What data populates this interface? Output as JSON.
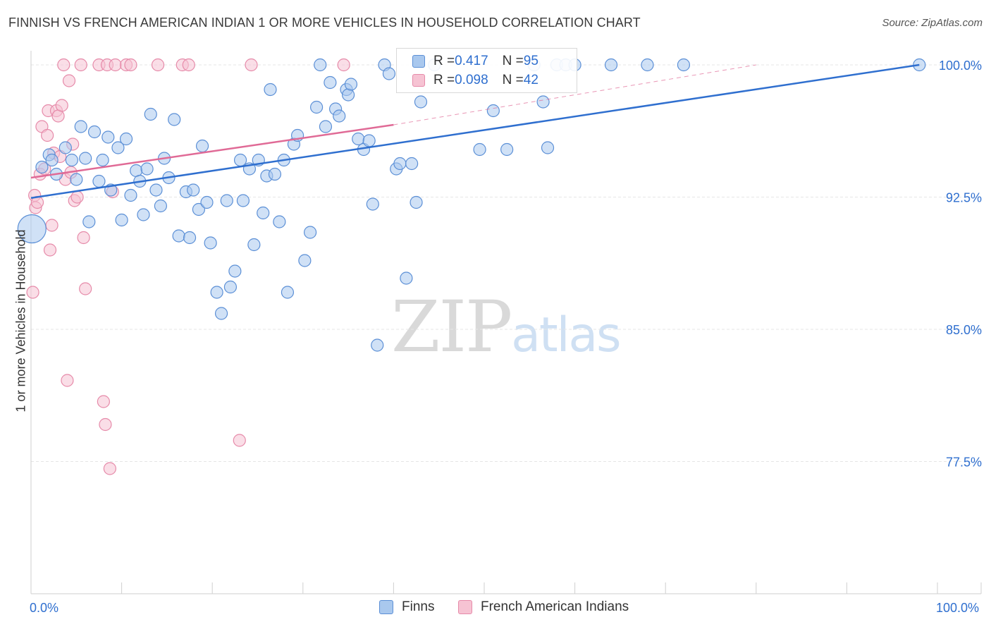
{
  "header": {
    "title": "FINNISH VS FRENCH AMERICAN INDIAN 1 OR MORE VEHICLES IN HOUSEHOLD CORRELATION CHART",
    "source": "Source: ZipAtlas.com"
  },
  "watermark": {
    "zip": "ZIP",
    "atlas": "atlas"
  },
  "colors": {
    "finns_fill": "#a9c8ee",
    "finns_stroke": "#5b8fd6",
    "finns_line": "#2f6fcf",
    "fai_fill": "#f6c3d3",
    "fai_stroke": "#e68aa9",
    "fai_line": "#e06a96",
    "axis_text": "#2f6fcf",
    "grid": "#e6e6e6"
  },
  "inset_legend": {
    "rows": [
      {
        "r_label": "R = ",
        "r_value": "0.417",
        "n_label": "N = ",
        "n_value": "95"
      },
      {
        "r_label": "R = ",
        "r_value": "0.098",
        "n_label": "N = ",
        "n_value": "42"
      }
    ]
  },
  "chart_data": {
    "type": "scatter",
    "title": "FINNISH VS FRENCH AMERICAN INDIAN 1 OR MORE VEHICLES IN HOUSEHOLD CORRELATION CHART",
    "xlabel": "",
    "ylabel": "1 or more Vehicles in Household",
    "xlim": [
      0,
      100
    ],
    "ylim": [
      70.0,
      100.8
    ],
    "x_tick_labels": [
      "0.0%",
      "100.0%"
    ],
    "y_ticks": [
      77.5,
      85.0,
      92.5,
      100.0
    ],
    "y_tick_labels": [
      "77.5%",
      "85.0%",
      "92.5%",
      "100.0%"
    ],
    "grid": true,
    "legend_placement": "bottom-center",
    "series": [
      {
        "name": "Finns",
        "r": 0.417,
        "n": 95,
        "trend": {
          "x": [
            0,
            98
          ],
          "y": [
            92.45,
            100.0
          ]
        },
        "points": [
          [
            1.2,
            94.2
          ],
          [
            2.0,
            94.9
          ],
          [
            2.3,
            94.6
          ],
          [
            2.8,
            93.8
          ],
          [
            3.8,
            95.3
          ],
          [
            4.5,
            94.6
          ],
          [
            5.0,
            93.5
          ],
          [
            5.5,
            96.5
          ],
          [
            6.0,
            94.7
          ],
          [
            6.4,
            91.1
          ],
          [
            7.0,
            96.2
          ],
          [
            7.5,
            93.4
          ],
          [
            7.9,
            94.6
          ],
          [
            8.5,
            95.9
          ],
          [
            8.8,
            92.9
          ],
          [
            9.6,
            95.3
          ],
          [
            10.0,
            91.2
          ],
          [
            10.5,
            95.8
          ],
          [
            11.0,
            92.6
          ],
          [
            11.6,
            94.0
          ],
          [
            12.0,
            93.4
          ],
          [
            12.4,
            91.5
          ],
          [
            12.8,
            94.1
          ],
          [
            13.2,
            97.2
          ],
          [
            13.8,
            92.9
          ],
          [
            14.3,
            92.0
          ],
          [
            14.7,
            94.7
          ],
          [
            15.2,
            93.6
          ],
          [
            15.8,
            96.9
          ],
          [
            16.3,
            90.3
          ],
          [
            17.1,
            92.8
          ],
          [
            17.5,
            90.2
          ],
          [
            17.9,
            92.9
          ],
          [
            18.5,
            91.8
          ],
          [
            18.9,
            95.4
          ],
          [
            19.4,
            92.2
          ],
          [
            19.8,
            89.9
          ],
          [
            20.5,
            87.1
          ],
          [
            21.0,
            85.9
          ],
          [
            21.6,
            92.3
          ],
          [
            22.0,
            87.4
          ],
          [
            22.5,
            88.3
          ],
          [
            23.1,
            94.6
          ],
          [
            23.4,
            92.3
          ],
          [
            24.1,
            94.1
          ],
          [
            24.6,
            89.8
          ],
          [
            25.1,
            94.6
          ],
          [
            25.6,
            91.6
          ],
          [
            26.0,
            93.7
          ],
          [
            26.4,
            98.6
          ],
          [
            26.9,
            93.8
          ],
          [
            27.4,
            91.1
          ],
          [
            27.9,
            94.6
          ],
          [
            28.3,
            87.1
          ],
          [
            29.0,
            95.5
          ],
          [
            29.4,
            96.0
          ],
          [
            30.2,
            88.9
          ],
          [
            30.8,
            90.5
          ],
          [
            31.5,
            97.6
          ],
          [
            31.9,
            100.0
          ],
          [
            32.5,
            96.5
          ],
          [
            33.0,
            99.0
          ],
          [
            33.6,
            97.5
          ],
          [
            34.0,
            97.1
          ],
          [
            34.8,
            98.6
          ],
          [
            35.0,
            98.3
          ],
          [
            35.3,
            98.9
          ],
          [
            36.1,
            95.8
          ],
          [
            36.7,
            95.2
          ],
          [
            37.3,
            95.7
          ],
          [
            37.7,
            92.1
          ],
          [
            38.2,
            84.1
          ],
          [
            39.0,
            100.0
          ],
          [
            39.5,
            99.5
          ],
          [
            40.3,
            94.1
          ],
          [
            40.7,
            94.4
          ],
          [
            41.4,
            87.9
          ],
          [
            42.0,
            94.4
          ],
          [
            42.5,
            92.2
          ],
          [
            43.0,
            97.9
          ],
          [
            44.5,
            100.0
          ],
          [
            49.5,
            95.2
          ],
          [
            51.0,
            97.4
          ],
          [
            52.5,
            95.2
          ],
          [
            55.5,
            100.0
          ],
          [
            56.5,
            97.9
          ],
          [
            57.0,
            95.3
          ],
          [
            58.0,
            100.0
          ],
          [
            59.0,
            100.0
          ],
          [
            60.0,
            100.0
          ],
          [
            64.0,
            100.0
          ],
          [
            68.0,
            100.0
          ],
          [
            72.0,
            100.0
          ],
          [
            98.0,
            100.0
          ],
          [
            0.1,
            90.7
          ]
        ]
      },
      {
        "name": "French American Indians",
        "r": 0.098,
        "n": 42,
        "trend": {
          "x": [
            0,
            40
          ],
          "y": [
            93.6,
            96.6
          ]
        },
        "trend_extended": {
          "x": [
            40,
            80
          ],
          "y": [
            96.6,
            100.0
          ]
        },
        "points": [
          [
            0.2,
            87.1
          ],
          [
            0.4,
            92.6
          ],
          [
            0.5,
            91.9
          ],
          [
            0.7,
            92.2
          ],
          [
            1.0,
            93.8
          ],
          [
            1.2,
            96.5
          ],
          [
            1.5,
            94.1
          ],
          [
            1.8,
            96.0
          ],
          [
            1.9,
            97.4
          ],
          [
            2.1,
            89.5
          ],
          [
            2.3,
            90.9
          ],
          [
            2.5,
            95.0
          ],
          [
            2.8,
            97.4
          ],
          [
            3.0,
            97.1
          ],
          [
            3.2,
            94.8
          ],
          [
            3.4,
            97.7
          ],
          [
            3.6,
            100.0
          ],
          [
            3.8,
            93.5
          ],
          [
            4.0,
            82.1
          ],
          [
            4.2,
            99.1
          ],
          [
            4.4,
            93.9
          ],
          [
            4.6,
            95.5
          ],
          [
            4.8,
            92.3
          ],
          [
            5.1,
            92.5
          ],
          [
            5.5,
            100.0
          ],
          [
            5.8,
            90.2
          ],
          [
            6.0,
            87.3
          ],
          [
            7.5,
            100.0
          ],
          [
            8.0,
            80.9
          ],
          [
            8.2,
            79.6
          ],
          [
            8.4,
            100.0
          ],
          [
            8.7,
            77.1
          ],
          [
            9.0,
            92.8
          ],
          [
            9.3,
            100.0
          ],
          [
            10.5,
            100.0
          ],
          [
            11.0,
            100.0
          ],
          [
            14.0,
            100.0
          ],
          [
            16.7,
            100.0
          ],
          [
            17.4,
            100.0
          ],
          [
            23.0,
            78.7
          ],
          [
            24.3,
            100.0
          ],
          [
            34.5,
            100.0
          ]
        ]
      }
    ]
  },
  "bottom_legend": {
    "finns": "Finns",
    "fai": "French American Indians"
  }
}
